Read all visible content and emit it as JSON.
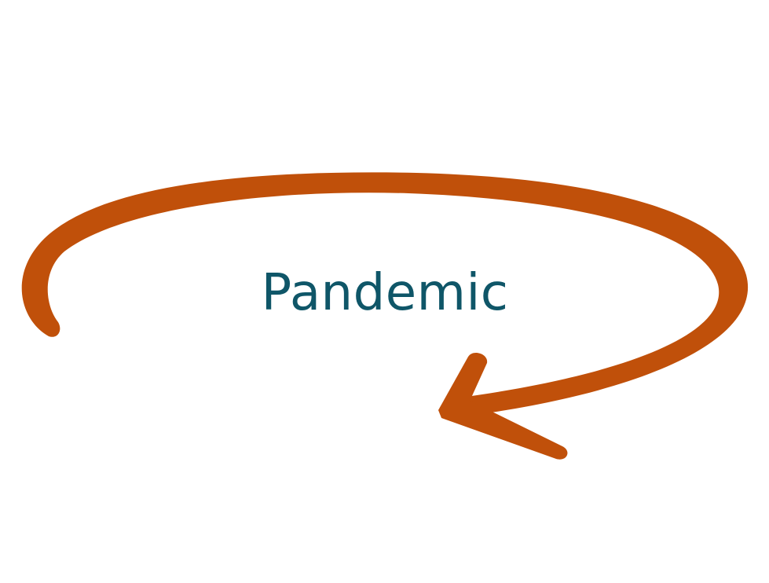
{
  "diagram": {
    "label": "Pandemic",
    "colors": {
      "arrow": "#c0500a",
      "label": "#0f5668",
      "background": "#ffffff"
    },
    "arrow_shape": "circular-arrow-clockwise",
    "arrowhead_icon": "arrowhead-icon"
  }
}
